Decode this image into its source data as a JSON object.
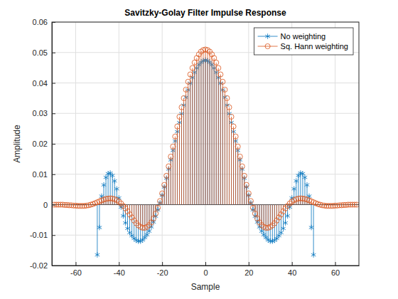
{
  "chart_data": {
    "type": "stem",
    "title": "Savitzky-Golay Filter Impulse Response",
    "x_label": "Sample",
    "y_label": "Amplitude",
    "xlim": [
      -71,
      71
    ],
    "ylim": [
      -0.02,
      0.06
    ],
    "xticks": [
      -60,
      -40,
      -20,
      0,
      20,
      40,
      60
    ],
    "yticks": [
      -0.02,
      -0.01,
      0,
      0.01,
      0.02,
      0.03,
      0.04,
      0.05,
      0.06
    ],
    "grid": true,
    "legend": "northeast",
    "series": [
      {
        "name": "No weighting",
        "color": "#0072bd",
        "marker": "asterisk",
        "x": [
          -50,
          -49,
          -48,
          -47,
          -46,
          -45,
          -44,
          -43,
          -42,
          -41,
          -40,
          -39,
          -38,
          -37,
          -36,
          -35,
          -34,
          -33,
          -32,
          -31,
          -30,
          -29,
          -28,
          -27,
          -26,
          -25,
          -24,
          -23,
          -22,
          -21,
          -20,
          -19,
          -18,
          -17,
          -16,
          -15,
          -14,
          -13,
          -12,
          -11,
          -10,
          -9,
          -8,
          -7,
          -6,
          -5,
          -4,
          -3,
          -2,
          -1,
          0,
          1,
          2,
          3,
          4,
          5,
          6,
          7,
          8,
          9,
          10,
          11,
          12,
          13,
          14,
          15,
          16,
          17,
          18,
          19,
          20,
          21,
          22,
          23,
          24,
          25,
          26,
          27,
          28,
          29,
          30,
          31,
          32,
          33,
          34,
          35,
          36,
          37,
          38,
          39,
          40,
          41,
          42,
          43,
          44,
          45,
          46,
          47,
          48,
          49,
          50
        ],
        "values": [
          -0.0165,
          -0.0075,
          0.0028,
          0.0065,
          0.009,
          0.0102,
          0.0104,
          0.0096,
          0.0078,
          0.0052,
          0.0022,
          -0.0008,
          -0.0037,
          -0.006,
          -0.0078,
          -0.0092,
          -0.0102,
          -0.0111,
          -0.0117,
          -0.012,
          -0.012,
          -0.0116,
          -0.0108,
          -0.0099,
          -0.0087,
          -0.0073,
          -0.0057,
          -0.0038,
          -0.0017,
          0.0006,
          0.0031,
          0.0058,
          0.0087,
          0.0117,
          0.0147,
          0.0178,
          0.0209,
          0.024,
          0.027,
          0.0299,
          0.0327,
          0.0353,
          0.0377,
          0.0399,
          0.0418,
          0.0435,
          0.0449,
          0.046,
          0.0468,
          0.0473,
          0.0475,
          0.0473,
          0.0468,
          0.046,
          0.0449,
          0.0435,
          0.0418,
          0.0399,
          0.0377,
          0.0353,
          0.0327,
          0.0299,
          0.027,
          0.024,
          0.0209,
          0.0178,
          0.0147,
          0.0117,
          0.0087,
          0.0058,
          0.0031,
          0.0006,
          -0.0017,
          -0.0038,
          -0.0057,
          -0.0073,
          -0.0087,
          -0.0099,
          -0.0108,
          -0.0116,
          -0.012,
          -0.012,
          -0.0117,
          -0.0111,
          -0.0102,
          -0.0092,
          -0.0078,
          -0.006,
          -0.0037,
          -0.0008,
          0.0022,
          0.0052,
          0.0078,
          0.0096,
          0.0104,
          0.0102,
          0.009,
          0.0065,
          0.0028,
          -0.0075,
          -0.0165
        ]
      },
      {
        "name": "Sq. Hann weighting",
        "color": "#d95319",
        "marker": "circle",
        "x": [
          -70,
          -69,
          -68,
          -67,
          -66,
          -65,
          -64,
          -63,
          -62,
          -61,
          -60,
          -59,
          -58,
          -57,
          -56,
          -55,
          -54,
          -53,
          -52,
          -51,
          -50,
          -49,
          -48,
          -47,
          -46,
          -45,
          -44,
          -43,
          -42,
          -41,
          -40,
          -39,
          -38,
          -37,
          -36,
          -35,
          -34,
          -33,
          -32,
          -31,
          -30,
          -29,
          -28,
          -27,
          -26,
          -25,
          -24,
          -23,
          -22,
          -21,
          -20,
          -19,
          -18,
          -17,
          -16,
          -15,
          -14,
          -13,
          -12,
          -11,
          -10,
          -9,
          -8,
          -7,
          -6,
          -5,
          -4,
          -3,
          -2,
          -1,
          0,
          1,
          2,
          3,
          4,
          5,
          6,
          7,
          8,
          9,
          10,
          11,
          12,
          13,
          14,
          15,
          16,
          17,
          18,
          19,
          20,
          21,
          22,
          23,
          24,
          25,
          26,
          27,
          28,
          29,
          30,
          31,
          32,
          33,
          34,
          35,
          36,
          37,
          38,
          39,
          40,
          41,
          42,
          43,
          44,
          45,
          46,
          47,
          48,
          49,
          50,
          51,
          52,
          53,
          54,
          55,
          56,
          57,
          58,
          59,
          60,
          61,
          62,
          63,
          64,
          65,
          66,
          67,
          68,
          69,
          70
        ],
        "values": [
          0,
          0,
          0,
          0,
          0,
          -0.0001,
          -0.0001,
          -0.0002,
          -0.0002,
          -0.0003,
          -0.0003,
          -0.0004,
          -0.0004,
          -0.0004,
          -0.0004,
          -0.0003,
          -0.0002,
          0,
          0.0002,
          0.0005,
          0.0008,
          0.0011,
          0.0014,
          0.0017,
          0.0019,
          0.002,
          0.0021,
          0.002,
          0.0018,
          0.0015,
          0.001,
          0.0004,
          -0.0004,
          -0.0012,
          -0.0022,
          -0.0032,
          -0.0042,
          -0.0052,
          -0.0061,
          -0.0068,
          -0.0073,
          -0.0076,
          -0.0076,
          -0.0073,
          -0.0067,
          -0.0058,
          -0.0045,
          -0.0029,
          -0.001,
          0.0012,
          0.0037,
          0.0065,
          0.0095,
          0.0126,
          0.0158,
          0.0191,
          0.0224,
          0.0257,
          0.0289,
          0.032,
          0.035,
          0.0378,
          0.0404,
          0.0428,
          0.0449,
          0.0467,
          0.0482,
          0.0494,
          0.0503,
          0.0508,
          0.051,
          0.0508,
          0.0503,
          0.0494,
          0.0482,
          0.0467,
          0.0449,
          0.0428,
          0.0404,
          0.0378,
          0.035,
          0.032,
          0.0289,
          0.0257,
          0.0224,
          0.0191,
          0.0158,
          0.0126,
          0.0095,
          0.0065,
          0.0037,
          0.0012,
          -0.001,
          -0.0029,
          -0.0045,
          -0.0058,
          -0.0067,
          -0.0073,
          -0.0076,
          -0.0076,
          -0.0073,
          -0.0068,
          -0.0061,
          -0.0052,
          -0.0042,
          -0.0032,
          -0.0022,
          -0.0012,
          -0.0004,
          0.0004,
          0.001,
          0.0015,
          0.0018,
          0.002,
          0.0021,
          0.002,
          0.0019,
          0.0017,
          0.0014,
          0.0011,
          0.0008,
          0.0005,
          0.0002,
          0,
          -0.0002,
          -0.0003,
          -0.0004,
          -0.0004,
          -0.0004,
          -0.0004,
          -0.0003,
          -0.0003,
          -0.0002,
          -0.0002,
          -0.0001,
          -0.0001,
          0,
          0,
          0,
          0,
          0
        ]
      }
    ]
  }
}
